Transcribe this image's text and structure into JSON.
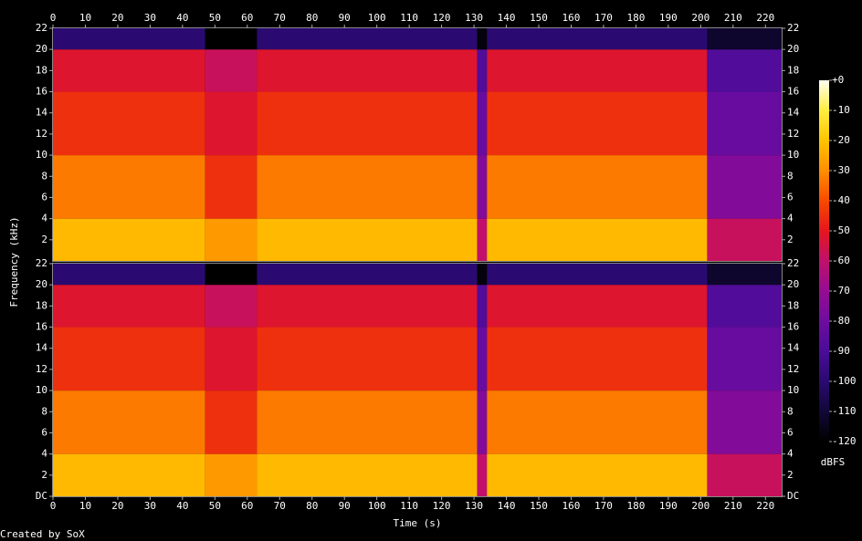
{
  "chart_data": [
    {
      "type": "spectrogram",
      "xlim": [
        0,
        225
      ],
      "xticks": [
        0,
        10,
        20,
        30,
        40,
        50,
        60,
        70,
        80,
        90,
        100,
        110,
        120,
        130,
        140,
        150,
        160,
        170,
        180,
        190,
        200,
        210,
        220
      ],
      "ylim": [
        0,
        22
      ],
      "yticks": [
        2,
        4,
        6,
        8,
        10,
        12,
        14,
        16,
        18,
        20,
        22
      ],
      "x": [
        0,
        47,
        63,
        131,
        134,
        202,
        225
      ],
      "bands": [
        0,
        4,
        10,
        16,
        20,
        22
      ],
      "values": [
        [
          -22,
          -33,
          -45,
          -52,
          -100
        ],
        [
          -28,
          -45,
          -52,
          -58,
          -120
        ],
        [
          -22,
          -33,
          -45,
          -52,
          -100
        ],
        [
          -60,
          -75,
          -82,
          -88,
          -118
        ],
        [
          -22,
          -33,
          -45,
          -52,
          -100
        ],
        [
          -58,
          -75,
          -82,
          -88,
          -112
        ]
      ]
    },
    {
      "type": "spectrogram",
      "xlim": [
        0,
        225
      ],
      "xticks": [
        0,
        10,
        20,
        30,
        40,
        50,
        60,
        70,
        80,
        90,
        100,
        110,
        120,
        130,
        140,
        150,
        160,
        170,
        180,
        190,
        200,
        210,
        220
      ],
      "ylim": [
        0,
        22
      ],
      "yticks": [
        {
          "value": 0,
          "label": "DC"
        },
        2,
        4,
        6,
        8,
        10,
        12,
        14,
        16,
        18,
        20,
        22
      ],
      "x": [
        0,
        47,
        63,
        131,
        134,
        202,
        225
      ],
      "bands": [
        0,
        4,
        10,
        16,
        20,
        22
      ],
      "values": [
        [
          -22,
          -33,
          -45,
          -52,
          -100
        ],
        [
          -28,
          -45,
          -52,
          -58,
          -120
        ],
        [
          -22,
          -33,
          -45,
          -52,
          -100
        ],
        [
          -60,
          -75,
          -82,
          -88,
          -118
        ],
        [
          -22,
          -33,
          -45,
          -52,
          -100
        ],
        [
          -58,
          -75,
          -82,
          -88,
          -112
        ]
      ]
    }
  ],
  "xlabel": "Time (s)",
  "ylabel": "Frequency (kHz)",
  "colorbar": {
    "label": "dBFS",
    "lim": [
      -120,
      0
    ],
    "ticks": [
      {
        "value": 0,
        "label": "+0"
      },
      -10,
      -20,
      -30,
      -40,
      -50,
      -60,
      -70,
      -80,
      -90,
      -100,
      -110,
      -120
    ],
    "colors": [
      "#000000",
      "#120838",
      "#2a0a70",
      "#4a0c98",
      "#6e0ca0",
      "#960c92",
      "#c0106c",
      "#e6161e",
      "#f84a00",
      "#ff8e00",
      "#ffc400",
      "#ffee40",
      "#fffff0"
    ]
  },
  "footer": "Created by SoX"
}
